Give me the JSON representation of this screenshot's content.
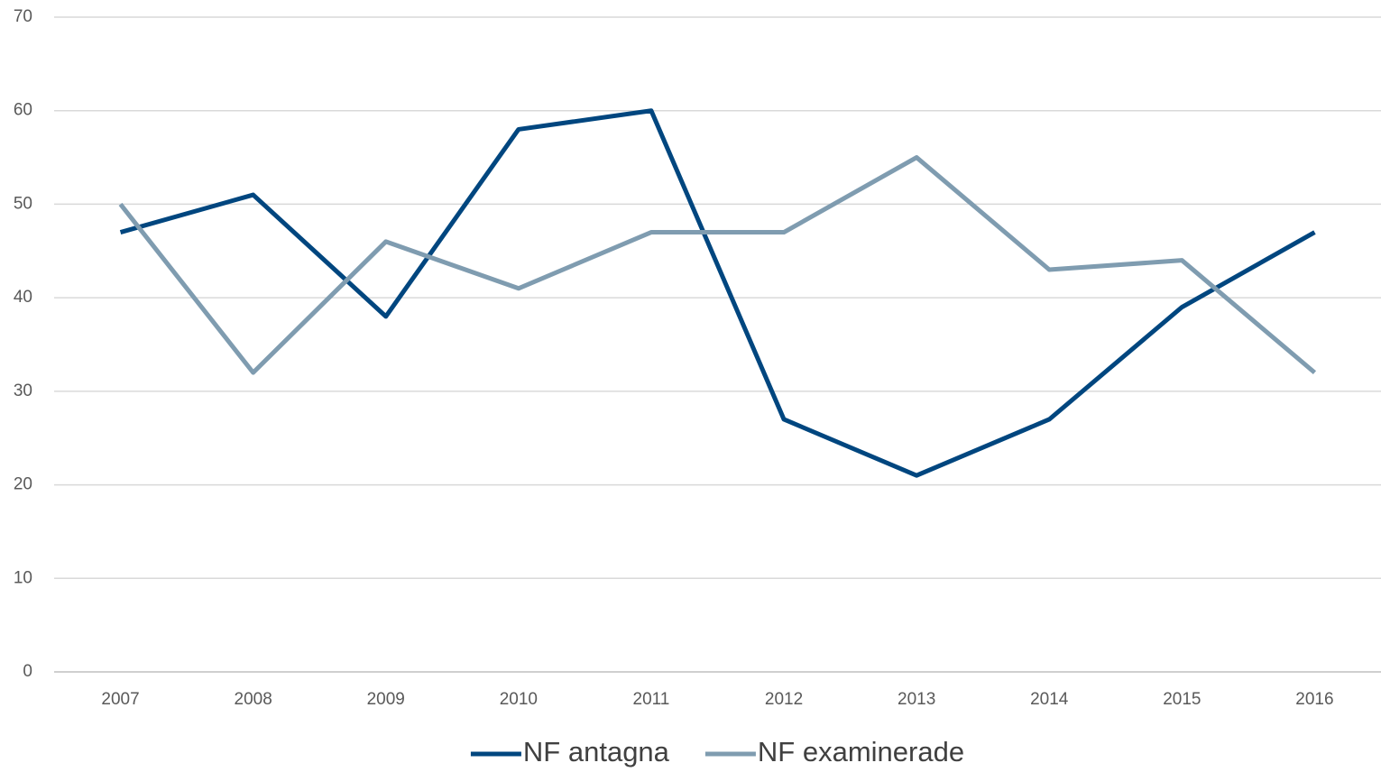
{
  "chart_data": {
    "type": "line",
    "categories": [
      "2007",
      "2008",
      "2009",
      "2010",
      "2011",
      "2012",
      "2013",
      "2014",
      "2015",
      "2016"
    ],
    "series": [
      {
        "name": "NF antagna",
        "color": "#00467f",
        "values": [
          47,
          51,
          38,
          58,
          60,
          27,
          21,
          27,
          39,
          47
        ]
      },
      {
        "name": "NF examinerade",
        "color": "#7f9cb0",
        "values": [
          50,
          32,
          46,
          41,
          47,
          47,
          55,
          43,
          44,
          32
        ]
      }
    ],
    "ylim": [
      0,
      70
    ],
    "yticks": [
      0,
      10,
      20,
      30,
      40,
      50,
      60,
      70
    ],
    "grid": true,
    "legend": "bottom"
  }
}
